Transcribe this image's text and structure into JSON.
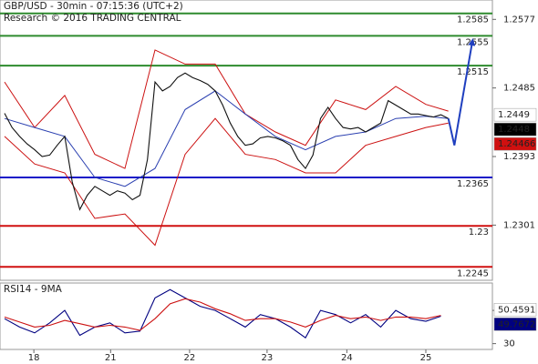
{
  "chart_data": [
    {
      "type": "line",
      "title": "GBP/USD - 30min - 07:15:36 (UTC+2)",
      "subtitle": "Research © 2016 TRADING CENTRAL",
      "x": [
        0,
        1,
        2,
        3,
        4,
        5,
        6,
        7,
        8,
        9,
        10,
        11,
        12,
        13,
        14,
        15,
        16,
        17,
        18,
        19,
        20,
        21,
        22,
        23,
        24,
        25,
        26,
        27,
        28,
        29,
        30,
        31,
        32,
        33,
        34,
        35,
        36,
        37,
        38,
        39,
        40,
        41,
        42,
        43,
        44,
        45,
        46,
        47,
        48,
        49,
        50,
        51,
        52,
        53,
        54,
        55,
        56,
        57,
        58,
        59
      ],
      "series": [
        {
          "color": "#111111",
          "values": [
            1.2451,
            1.2432,
            1.242,
            1.241,
            1.2402,
            1.2393,
            1.2395,
            1.2408,
            1.242,
            1.2359,
            1.2322,
            1.2341,
            1.2353,
            1.2347,
            1.2341,
            1.2347,
            1.2344,
            1.2335,
            1.2341,
            1.2389,
            1.2493,
            1.2481,
            1.2487,
            1.2499,
            1.2505,
            1.2499,
            1.2495,
            1.249,
            1.2481,
            1.2462,
            1.2438,
            1.242,
            1.2408,
            1.241,
            1.2418,
            1.242,
            1.2418,
            1.2414,
            1.2408,
            1.2389,
            1.2377,
            1.2395,
            1.2444,
            1.2459,
            1.2444,
            1.2432,
            1.243,
            1.2432,
            1.2426,
            1.2432,
            1.2438,
            1.2468,
            1.2462,
            1.2456,
            1.245,
            1.245,
            1.2448,
            1.2446,
            1.2449,
            1.2444
          ]
        }
      ],
      "overlays": [
        {
          "color": "#cc1111",
          "x": [
            0,
            4,
            8,
            12,
            16,
            20,
            24,
            28,
            32,
            36,
            40,
            44,
            48,
            52,
            56,
            59
          ],
          "values": [
            1.2493,
            1.2432,
            1.2475,
            1.2396,
            1.2377,
            1.2536,
            1.2517,
            1.2517,
            1.245,
            1.2426,
            1.2408,
            1.2469,
            1.2456,
            1.2487,
            1.2463,
            1.2454
          ]
        },
        {
          "color": "#cc1111",
          "x": [
            0,
            4,
            8,
            12,
            16,
            20,
            24,
            28,
            32,
            36,
            40,
            44,
            48,
            52,
            56,
            59
          ],
          "values": [
            1.242,
            1.2383,
            1.2371,
            1.231,
            1.2316,
            1.2274,
            1.2396,
            1.2444,
            1.2396,
            1.2389,
            1.2371,
            1.2371,
            1.2408,
            1.242,
            1.2432,
            1.2438
          ]
        },
        {
          "color": "#2a3fb0",
          "x": [
            0,
            4,
            8,
            12,
            16,
            20,
            24,
            28,
            32,
            36,
            40,
            44,
            48,
            52,
            56,
            59
          ],
          "values": [
            1.2444,
            1.2432,
            1.242,
            1.2365,
            1.2353,
            1.2377,
            1.2456,
            1.2481,
            1.245,
            1.242,
            1.2402,
            1.242,
            1.2426,
            1.2444,
            1.2447,
            1.2444
          ]
        }
      ],
      "forecast": {
        "color": "#1f3fbf",
        "x": [
          59,
          59.8,
          62.2
        ],
        "values": [
          1.2444,
          1.2408,
          1.2548
        ]
      },
      "levels": [
        {
          "value": 1.2585,
          "color": "#2e8b2e"
        },
        {
          "value": 1.2555,
          "color": "#2e8b2e"
        },
        {
          "value": 1.2515,
          "color": "#2e8b2e"
        },
        {
          "value": 1.2365,
          "color": "#1515c8"
        },
        {
          "value": 1.23,
          "color": "#d01010"
        },
        {
          "value": 1.2245,
          "color": "#d01010"
        }
      ],
      "price_labels": [
        {
          "value": 1.2449,
          "color": "#000000",
          "background": "#ffffff"
        },
        {
          "value": 1.2448,
          "color": "#ffffff",
          "background": "#000000"
        },
        {
          "value": 1.24466,
          "color": "#ffffff",
          "background": "#d01010"
        }
      ],
      "xlim": [
        -0.6,
        64.85
      ],
      "ylim": [
        1.2227,
        1.2603
      ],
      "yticks": [
        1.2301,
        1.2393,
        1.2485,
        1.2577
      ]
    },
    {
      "type": "line",
      "title": "RSI14 - 9MA",
      "x": [
        0,
        2,
        4,
        6,
        8,
        10,
        12,
        14,
        16,
        18,
        20,
        22,
        24,
        26,
        28,
        30,
        32,
        34,
        36,
        38,
        40,
        42,
        44,
        46,
        48,
        50,
        52,
        54,
        56,
        58
      ],
      "series": [
        {
          "color": "#000080",
          "values": [
            45,
            40,
            36.5,
            42.5,
            50,
            35,
            40,
            42.5,
            36.5,
            37.5,
            57.5,
            62.5,
            57.5,
            52.5,
            50,
            45,
            40,
            47.5,
            45,
            40,
            33.5,
            50,
            47.5,
            42.5,
            47.5,
            40,
            50,
            45,
            43.5,
            46.5
          ]
        },
        {
          "color": "#cc1111",
          "values": [
            46,
            43,
            40,
            41,
            44,
            42,
            40,
            41,
            40,
            38,
            45,
            54,
            57,
            55,
            51,
            48,
            44,
            45,
            45,
            43,
            40,
            44,
            47,
            45,
            46,
            44,
            46,
            46,
            45,
            47
          ]
        }
      ],
      "price_labels": [
        {
          "value": 50.4591,
          "color": "#cc1111",
          "background": "#ffffff"
        },
        {
          "value": 49.7672,
          "color": "#ffffff",
          "background": "#000080"
        }
      ],
      "xlim": [
        -0.6,
        64.85
      ],
      "ylim": [
        26.5,
        66.5
      ],
      "yticks": [
        30,
        50
      ],
      "xticks": [
        {
          "value": 3.9,
          "label": "18"
        },
        {
          "value": 14.1,
          "label": "21"
        },
        {
          "value": 24.6,
          "label": "22"
        },
        {
          "value": 34.9,
          "label": "23"
        },
        {
          "value": 45.5,
          "label": "24"
        },
        {
          "value": 56,
          "label": "25"
        }
      ]
    }
  ]
}
